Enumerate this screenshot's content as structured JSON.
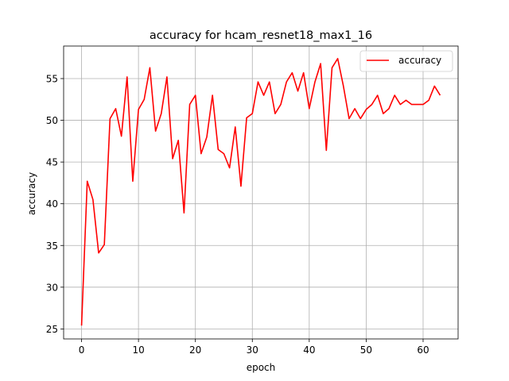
{
  "chart_data": {
    "type": "line",
    "title": "accuracy for hcam_resnet18_max1_16",
    "xlabel": "epoch",
    "ylabel": "accuracy",
    "xlim": [
      -3.15,
      66.15
    ],
    "ylim": [
      23.8,
      58.9
    ],
    "xticks": [
      0,
      10,
      20,
      30,
      40,
      50,
      60
    ],
    "yticks": [
      25,
      30,
      35,
      40,
      45,
      50,
      55
    ],
    "grid": true,
    "legend": "top-right",
    "series": [
      {
        "name": "accuracy",
        "color": "#ff0000",
        "x": [
          0,
          1,
          2,
          3,
          4,
          5,
          6,
          7,
          8,
          9,
          10,
          11,
          12,
          13,
          14,
          15,
          16,
          17,
          18,
          19,
          20,
          21,
          22,
          23,
          24,
          25,
          26,
          27,
          28,
          29,
          30,
          31,
          32,
          33,
          34,
          35,
          36,
          37,
          38,
          39,
          40,
          41,
          42,
          43,
          44,
          45,
          46,
          47,
          48,
          49,
          50,
          51,
          52,
          53,
          54,
          55,
          56,
          57,
          58,
          59,
          60,
          61,
          62,
          63
        ],
        "values": [
          25.4,
          42.7,
          40.5,
          34.1,
          35.1,
          50.2,
          51.4,
          48.1,
          55.2,
          42.7,
          51.3,
          52.5,
          56.3,
          48.7,
          50.8,
          55.2,
          45.4,
          47.6,
          38.9,
          51.9,
          53.0,
          46.0,
          48.0,
          53.0,
          46.5,
          46.0,
          44.3,
          49.2,
          42.1,
          50.3,
          50.8,
          54.6,
          53.0,
          54.6,
          50.8,
          51.9,
          54.6,
          55.7,
          53.5,
          55.7,
          51.4,
          54.6,
          56.8,
          46.4,
          56.3,
          57.4,
          54.1,
          50.2,
          51.4,
          50.2,
          51.3,
          51.9,
          53.0,
          50.8,
          51.4,
          53.0,
          51.9,
          52.4,
          51.9,
          51.9,
          51.9,
          52.4,
          54.1,
          53.0
        ]
      }
    ]
  }
}
